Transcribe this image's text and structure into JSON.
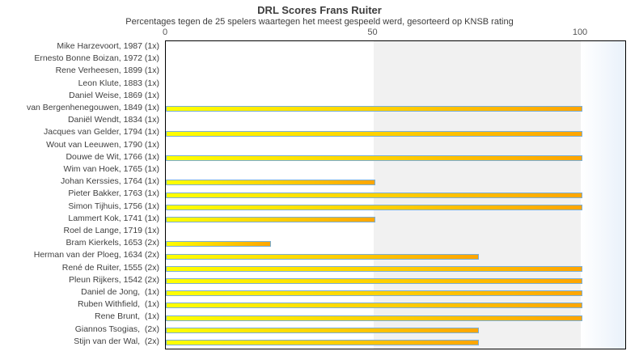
{
  "title": "DRL Scores Frans Ruiter",
  "subtitle": "Percentages tegen de 25 spelers waartegen het meest gespeeld werd, gesorteerd op KNSB rating",
  "colors": {
    "bar_gradient_start": "#ffff00",
    "bar_gradient_end": "#ffa500",
    "bar_border": "#79aed7",
    "band_50_100": "#f1f1f1",
    "band_beyond_100_end": "#e9f1fa",
    "plot_border": "#000000",
    "text": "#3d3d3d"
  },
  "chart_data": {
    "type": "bar",
    "orientation": "horizontal",
    "title": "DRL Scores Frans Ruiter",
    "subtitle": "Percentages tegen de 25 spelers waartegen het meest gespeeld werd, gesorteerd op KNSB rating",
    "xlabel": "",
    "ylabel": "",
    "xlim": [
      0,
      110
    ],
    "x_ticks": [
      0,
      50,
      100
    ],
    "grid": "shaded band from 50 to 100",
    "legend": "none",
    "categories": [
      "Mike Harzevoort, 1987 (1x)",
      "Ernesto Bonne Boizan, 1972 (1x)",
      "Rene Verheesen, 1899 (1x)",
      "Leon Klute, 1883 (1x)",
      "Daniel Weise, 1869 (1x)",
      "van Bergenhenegouwen, 1849 (1x)",
      "Daniël Wendt, 1834 (1x)",
      "Jacques van Gelder, 1794 (1x)",
      "Wout van Leeuwen, 1790 (1x)",
      "Douwe de Wit, 1766 (1x)",
      "Wim van Hoek, 1765 (1x)",
      "Johan Kerssies, 1764 (1x)",
      "Pieter Bakker, 1763 (1x)",
      "Simon Tijhuis, 1756 (1x)",
      "Lammert Kok, 1741 (1x)",
      "Roel de Lange, 1719 (1x)",
      "Bram Kierkels, 1653 (2x)",
      "Herman van der Ploeg, 1634 (2x)",
      "René de Ruiter, 1555 (2x)",
      "Pleun Rijkers, 1542 (2x)",
      "Daniel de Jong,  (1x)",
      "Ruben Withfield,  (1x)",
      "Rene Brunt,  (1x)",
      "Giannos Tsogias,  (2x)",
      "Stijn van der Wal,  (2x)"
    ],
    "values": [
      0,
      0,
      0,
      0,
      0,
      100,
      0,
      100,
      0,
      100,
      0,
      50,
      100,
      100,
      50,
      0,
      25,
      75,
      100,
      100,
      100,
      100,
      100,
      75,
      75
    ]
  }
}
